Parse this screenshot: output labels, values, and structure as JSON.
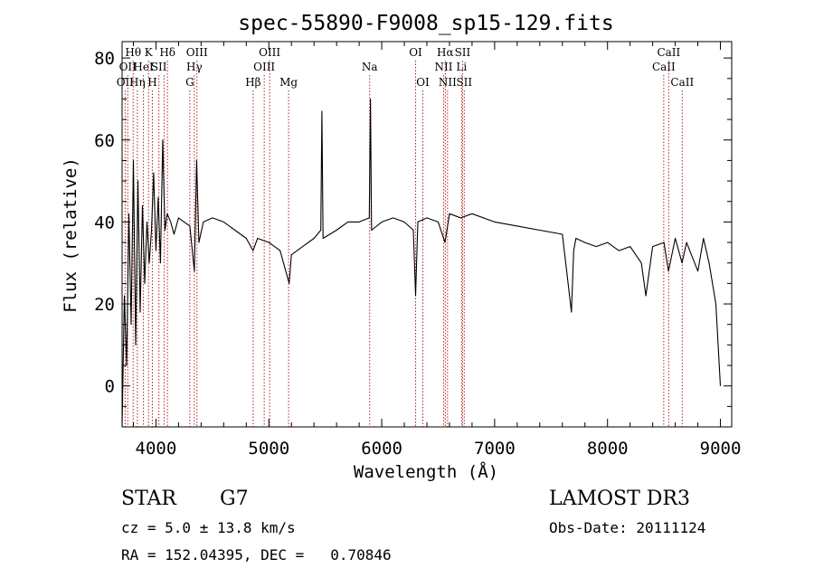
{
  "chart_data": {
    "type": "line",
    "title": "spec-55890-F9008_sp15-129.fits",
    "xlabel": "Wavelength (Å)",
    "ylabel": "Flux (relative)",
    "xlim": [
      3700,
      9100
    ],
    "ylim": [
      -10,
      84
    ],
    "xticks": [
      4000,
      5000,
      6000,
      7000,
      8000,
      9000
    ],
    "yticks": [
      0,
      20,
      40,
      60,
      80
    ],
    "grid": false,
    "series": [
      {
        "name": "flux",
        "x": [
          3700,
          3720,
          3740,
          3760,
          3780,
          3800,
          3820,
          3840,
          3860,
          3880,
          3900,
          3920,
          3940,
          3960,
          3980,
          4000,
          4020,
          4040,
          4060,
          4080,
          4100,
          4130,
          4160,
          4200,
          4250,
          4300,
          4340,
          4360,
          4380,
          4420,
          4500,
          4600,
          4700,
          4800,
          4860,
          4900,
          5000,
          5100,
          5180,
          5200,
          5300,
          5400,
          5460,
          5470,
          5480,
          5600,
          5700,
          5800,
          5890,
          5900,
          5910,
          6000,
          6100,
          6200,
          6280,
          6300,
          6320,
          6400,
          6500,
          6560,
          6600,
          6700,
          6800,
          7000,
          7200,
          7400,
          7600,
          7680,
          7700,
          7720,
          7800,
          7900,
          8000,
          8100,
          8200,
          8300,
          8340,
          8400,
          8500,
          8540,
          8600,
          8660,
          8700,
          8800,
          8850,
          8900,
          8960,
          8980,
          9000
        ],
        "values": [
          -10,
          22,
          5,
          42,
          15,
          55,
          10,
          50,
          18,
          44,
          25,
          40,
          30,
          38,
          52,
          33,
          46,
          30,
          60,
          38,
          42,
          40,
          37,
          41,
          40,
          39,
          28,
          55,
          35,
          40,
          41,
          40,
          38,
          36,
          33,
          36,
          35,
          33,
          25,
          32,
          34,
          36,
          38,
          67,
          36,
          38,
          40,
          40,
          41,
          70,
          38,
          40,
          41,
          40,
          38,
          22,
          40,
          41,
          40,
          35,
          42,
          41,
          42,
          40,
          39,
          38,
          37,
          18,
          33,
          36,
          35,
          34,
          35,
          33,
          34,
          30,
          22,
          34,
          35,
          28,
          36,
          30,
          35,
          28,
          36,
          30,
          20,
          10,
          0
        ]
      }
    ],
    "lines": [
      {
        "wl": 3727,
        "row": 2,
        "label": "OII"
      },
      {
        "wl": 3750,
        "row": 1,
        "label": "OII"
      },
      {
        "wl": 3798,
        "row": 0,
        "label": "Hθ"
      },
      {
        "wl": 3835,
        "row": 2,
        "label": "Hη"
      },
      {
        "wl": 3889,
        "row": 1,
        "label": "HeI"
      },
      {
        "wl": 3934,
        "row": 0,
        "label": "K"
      },
      {
        "wl": 3968,
        "row": 2,
        "label": "H"
      },
      {
        "wl": 4026,
        "row": 1,
        "label": "SII"
      },
      {
        "wl": 4072,
        "row": 1,
        "label": ""
      },
      {
        "wl": 4102,
        "row": 0,
        "label": "Hδ"
      },
      {
        "wl": 4300,
        "row": 2,
        "label": "G"
      },
      {
        "wl": 4340,
        "row": 1,
        "label": "Hγ"
      },
      {
        "wl": 4363,
        "row": 0,
        "label": "OIII"
      },
      {
        "wl": 4861,
        "row": 2,
        "label": "Hβ"
      },
      {
        "wl": 4959,
        "row": 1,
        "label": "OIII"
      },
      {
        "wl": 5007,
        "row": 0,
        "label": "OIII"
      },
      {
        "wl": 5175,
        "row": 2,
        "label": "Mg"
      },
      {
        "wl": 5893,
        "row": 1,
        "label": "Na"
      },
      {
        "wl": 6300,
        "row": 0,
        "label": "OI"
      },
      {
        "wl": 6364,
        "row": 2,
        "label": "OI"
      },
      {
        "wl": 6548,
        "row": 1,
        "label": "NII"
      },
      {
        "wl": 6563,
        "row": 0,
        "label": "Hα"
      },
      {
        "wl": 6583,
        "row": 2,
        "label": "NII"
      },
      {
        "wl": 6707,
        "row": 1,
        "label": "Li"
      },
      {
        "wl": 6716,
        "row": 0,
        "label": "SII"
      },
      {
        "wl": 6731,
        "row": 2,
        "label": "SII"
      },
      {
        "wl": 8498,
        "row": 1,
        "label": "CaII"
      },
      {
        "wl": 8542,
        "row": 0,
        "label": "CaII"
      },
      {
        "wl": 8662,
        "row": 2,
        "label": "CaII"
      }
    ]
  },
  "info": {
    "star": "STAR",
    "subclass": "G7",
    "survey": "LAMOST DR3",
    "cz": "cz = 5.0 ± 13.8 km/s",
    "obsdate": "Obs-Date: 20111124",
    "radec": "RA = 152.04395, DEC =   0.70846"
  }
}
